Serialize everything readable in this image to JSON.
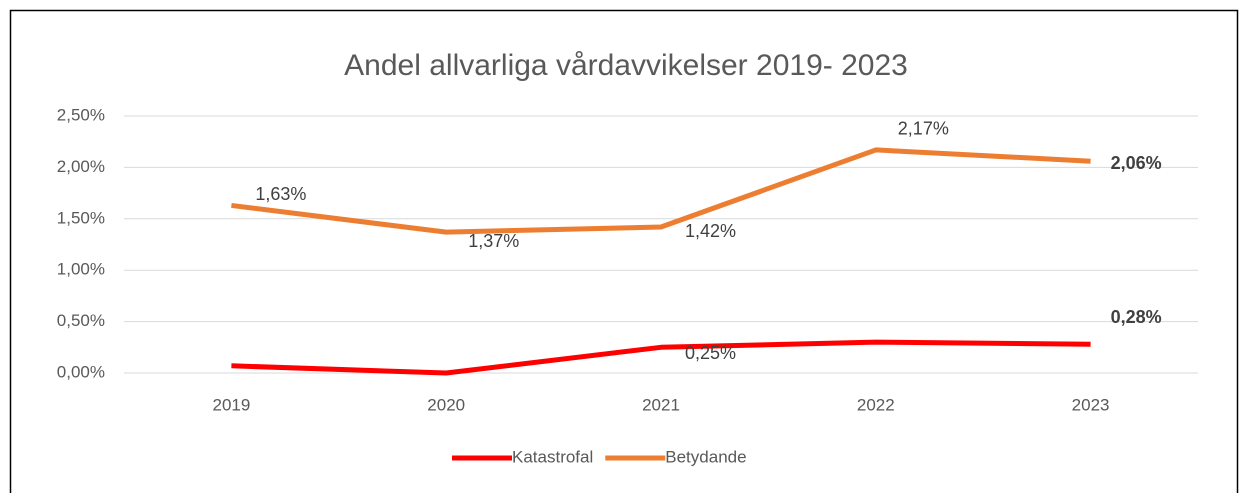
{
  "chart_data": {
    "type": "line",
    "title": "Andel allvarliga vårdavvikelser 2019- 2023",
    "categories": [
      "2019",
      "2020",
      "2021",
      "2022",
      "2023"
    ],
    "series": [
      {
        "name": "Katastrofal",
        "color": "#ff0000",
        "values": [
          0.07,
          0.0,
          0.25,
          0.3,
          0.28
        ],
        "value_labels": [
          null,
          null,
          "0,25%",
          null,
          "0,28%"
        ]
      },
      {
        "name": "Betydande",
        "color": "#ed7d31",
        "values": [
          1.63,
          1.37,
          1.42,
          2.17,
          2.06
        ],
        "value_labels": [
          "1,63%",
          "1,37%",
          "1,42%",
          "2,17%",
          "2,06%"
        ]
      }
    ],
    "ylim": [
      0,
      2.5
    ],
    "yticks": [
      {
        "value": 0,
        "label": "0,00%"
      },
      {
        "value": 0.5,
        "label": "0,50%"
      },
      {
        "value": 1,
        "label": "1,00%"
      },
      {
        "value": 1.5,
        "label": "1,50%"
      },
      {
        "value": 2,
        "label": "2,00%"
      },
      {
        "value": 2.5,
        "label": "2,50%"
      }
    ],
    "grid": true,
    "legend": "bottom"
  }
}
